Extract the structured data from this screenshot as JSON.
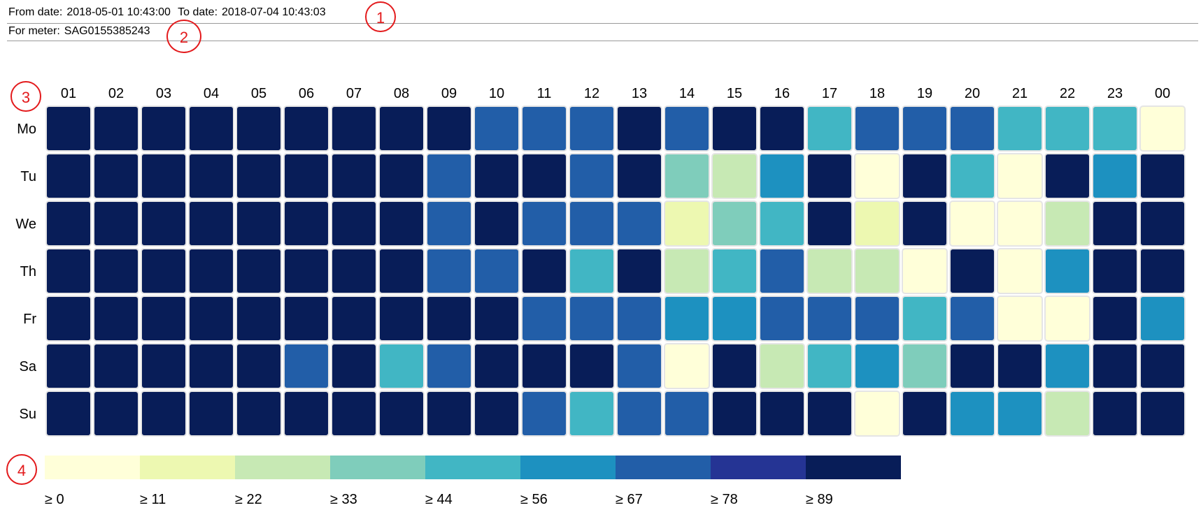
{
  "header": {
    "from_label": "From date:",
    "from_value": "2018-05-01 10:43:00",
    "to_label": "To date:",
    "to_value": "2018-07-04 10:43:03",
    "meter_label": "For meter:",
    "meter_value": "SAG0155385243"
  },
  "callouts": [
    "1",
    "2",
    "3",
    "4"
  ],
  "colors": {
    "scale": [
      "#ffffd9",
      "#edf8b1",
      "#c7e9b4",
      "#7fcdbb",
      "#41b6c4",
      "#1d91c0",
      "#225ea8",
      "#253494",
      "#081d58"
    ],
    "cell_border": "#e5e5e5",
    "callout": "#e31a1c"
  },
  "chart_data": {
    "type": "heatmap",
    "x_labels": [
      "01",
      "02",
      "03",
      "04",
      "05",
      "06",
      "07",
      "08",
      "09",
      "10",
      "11",
      "12",
      "13",
      "14",
      "15",
      "16",
      "17",
      "18",
      "19",
      "20",
      "21",
      "22",
      "23",
      "00"
    ],
    "y_labels": [
      "Mo",
      "Tu",
      "We",
      "Th",
      "Fr",
      "Sa",
      "Su"
    ],
    "values": [
      [
        95,
        95,
        95,
        95,
        95,
        95,
        95,
        95,
        95,
        70,
        70,
        70,
        95,
        70,
        95,
        95,
        48,
        70,
        70,
        70,
        48,
        48,
        48,
        5
      ],
      [
        95,
        95,
        95,
        95,
        95,
        95,
        95,
        95,
        70,
        95,
        95,
        70,
        95,
        38,
        27,
        60,
        95,
        5,
        95,
        48,
        5,
        95,
        60,
        95
      ],
      [
        95,
        95,
        95,
        95,
        95,
        95,
        95,
        95,
        70,
        95,
        70,
        70,
        70,
        16,
        38,
        48,
        95,
        16,
        95,
        5,
        5,
        27,
        95,
        95
      ],
      [
        95,
        95,
        95,
        95,
        95,
        95,
        95,
        95,
        70,
        70,
        95,
        48,
        95,
        27,
        48,
        70,
        27,
        27,
        5,
        95,
        5,
        60,
        95,
        95
      ],
      [
        95,
        95,
        95,
        95,
        95,
        95,
        95,
        95,
        95,
        95,
        70,
        70,
        70,
        60,
        60,
        70,
        70,
        70,
        48,
        70,
        5,
        5,
        95,
        60
      ],
      [
        95,
        95,
        95,
        95,
        95,
        70,
        95,
        48,
        70,
        95,
        95,
        95,
        70,
        5,
        95,
        27,
        48,
        60,
        38,
        95,
        95,
        60,
        95,
        95
      ],
      [
        95,
        95,
        95,
        95,
        95,
        95,
        95,
        95,
        95,
        95,
        70,
        48,
        70,
        70,
        95,
        95,
        95,
        5,
        95,
        60,
        60,
        27,
        95,
        95
      ]
    ],
    "legend": {
      "thresholds": [
        0,
        11,
        22,
        33,
        44,
        56,
        67,
        78,
        89
      ],
      "labels": [
        "≥ 0",
        "≥ 11",
        "≥ 22",
        "≥ 33",
        "≥ 44",
        "≥ 56",
        "≥ 67",
        "≥ 78",
        "≥ 89"
      ]
    }
  }
}
